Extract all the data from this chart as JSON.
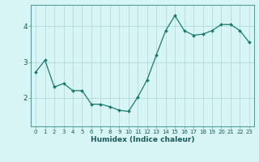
{
  "x": [
    0,
    1,
    2,
    3,
    4,
    5,
    6,
    7,
    8,
    9,
    10,
    11,
    12,
    13,
    14,
    15,
    16,
    17,
    18,
    19,
    20,
    21,
    22,
    23
  ],
  "y": [
    2.72,
    3.05,
    2.3,
    2.4,
    2.2,
    2.2,
    1.82,
    1.82,
    1.75,
    1.65,
    1.62,
    2.02,
    2.5,
    3.2,
    3.88,
    4.3,
    3.88,
    3.75,
    3.78,
    3.88,
    4.05,
    4.05,
    3.88,
    3.55
  ],
  "xlabel": "Humidex (Indice chaleur)",
  "line_color": "#1a7a6e",
  "bg_color": "#d8f5f5",
  "grid_color": "#aed4d4",
  "axis_color": "#5a9a9a",
  "ylim": [
    1.2,
    4.6
  ],
  "xlim": [
    -0.5,
    23.5
  ],
  "yticks": [
    2,
    3,
    4
  ],
  "xticks": [
    0,
    1,
    2,
    3,
    4,
    5,
    6,
    7,
    8,
    9,
    10,
    11,
    12,
    13,
    14,
    15,
    16,
    17,
    18,
    19,
    20,
    21,
    22,
    23
  ],
  "xlabel_fontsize": 6.5,
  "xlabel_color": "#1a5a5a",
  "tick_fontsize": 5.0,
  "ytick_fontsize": 6.5,
  "marker_size": 2.0,
  "line_width": 0.9
}
